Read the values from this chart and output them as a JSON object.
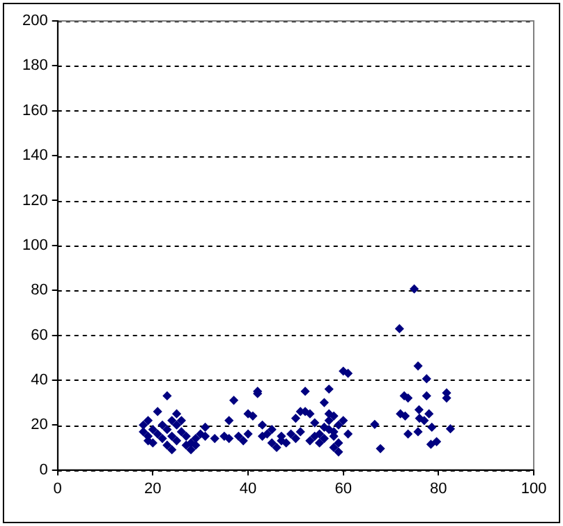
{
  "chart_data": {
    "type": "scatter",
    "xlim": [
      0,
      100
    ],
    "xticks": [
      0,
      20,
      40,
      60,
      80,
      100
    ],
    "ylim": [
      0,
      200
    ],
    "yticks": [
      0,
      20,
      40,
      60,
      80,
      100,
      120,
      140,
      160,
      180,
      200
    ],
    "grid": "y",
    "legend": false,
    "marker": "diamond",
    "series": [
      {
        "color": "#000080",
        "x": [
          18,
          18,
          19,
          19,
          19,
          20,
          20,
          21,
          21,
          22,
          22,
          23,
          23,
          23,
          24,
          24,
          24,
          25,
          25,
          25,
          26,
          26,
          27,
          27,
          28,
          28,
          29,
          29,
          30,
          31,
          31,
          33,
          35,
          36,
          36,
          37,
          38,
          39,
          40,
          40,
          41,
          42,
          42,
          43,
          43,
          44,
          45,
          45,
          46,
          47,
          47,
          48,
          49,
          50,
          50,
          51,
          51,
          52,
          52,
          53,
          53,
          54,
          54,
          55,
          55,
          56,
          56,
          56,
          57,
          57,
          57,
          57,
          58,
          58,
          58,
          58,
          59,
          59,
          59,
          60,
          60,
          61,
          61,
          66.6,
          67.8,
          71.8,
          72,
          72.8,
          73,
          73.6,
          73.6,
          74.9,
          75.7,
          75.9,
          75.7,
          76,
          77,
          77.5,
          77.5,
          78,
          78.4,
          78.6,
          79.6,
          81.7,
          81.7,
          82.5
        ],
        "values": [
          20,
          17,
          15,
          13,
          22,
          18,
          12,
          26,
          16,
          14,
          20,
          33,
          18,
          11,
          22,
          15,
          9,
          20,
          13,
          25,
          17,
          22,
          11,
          15,
          9,
          12,
          11,
          14,
          16,
          19,
          15,
          14,
          15,
          22,
          14,
          31,
          15,
          13,
          25,
          16,
          24,
          34,
          35,
          20,
          15,
          16,
          12,
          18,
          10,
          13,
          15,
          12,
          16,
          23,
          14,
          26,
          17,
          35,
          26,
          13,
          25,
          15,
          21,
          16,
          12,
          19,
          14,
          30,
          22,
          36,
          25,
          18,
          15,
          10,
          24,
          17,
          20,
          12,
          8,
          44,
          22,
          43,
          16,
          20.3,
          9.5,
          62.9,
          25,
          33,
          24,
          32,
          16,
          80.6,
          46.3,
          26.8,
          17,
          23,
          22,
          40.6,
          33,
          25,
          11.4,
          19,
          12.6,
          34.3,
          32,
          18.3
        ]
      }
    ]
  }
}
